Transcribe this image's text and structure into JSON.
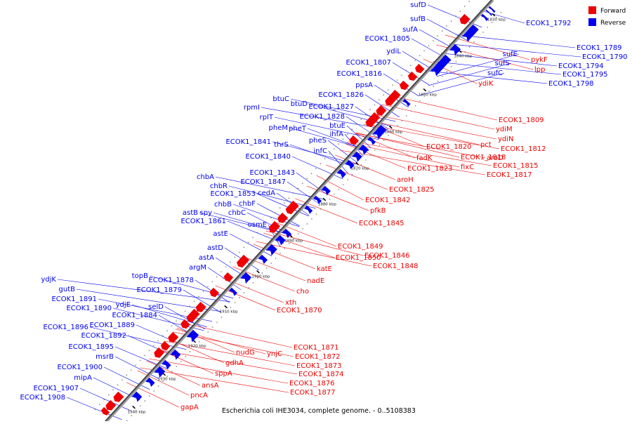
{
  "legend": {
    "forward_label": "Forward",
    "reverse_label": "Reverse",
    "forward_color": "#ee0000",
    "reverse_color": "#0000ee"
  },
  "caption": "Escherichia coli IHE3034, complete genome. - 0..5108383",
  "kbp_ticks": [
    "1830 kbp",
    "1840 kbp",
    "1850 kbp",
    "1860 kbp",
    "1870 kbp",
    "1880 kbp",
    "1890 kbp",
    "1900 kbp",
    "1910 kbp",
    "1920 kbp",
    "1930 kbp",
    "1940 kbp"
  ],
  "reverse_labels": [
    "sufD",
    "sufB",
    "sufA",
    "ECOK1_1805",
    "ydiL",
    "ECOK1_1807",
    "ECOK1_1816",
    "ppsA",
    "ECOK1_1826",
    "btuC",
    "btuD",
    "rpmI",
    "ECOK1_1827",
    "rplT",
    "ECOK1_1828",
    "pheM",
    "pheT",
    "btuE",
    "ihfA",
    "pheS",
    "thrS",
    "ECOK1_1841",
    "infC",
    "ECOK1_1840",
    "ECOK1_1843",
    "ECOK1_1847",
    "chbA",
    "chbR",
    "cedA",
    "ECOK1_1853",
    "chbB",
    "chbF",
    "chbC",
    "astB",
    "spy",
    "osmE",
    "ECOK1_1861",
    "astE",
    "astD",
    "astA",
    "argM",
    "topB",
    "ECOK1_1878",
    "ECOK1_1879",
    "ydjK",
    "gutB",
    "ECOK1_1891",
    "ECOK1_1890",
    "ydjE",
    "selD",
    "ECOK1_1884",
    "ECOK1_1889",
    "ECOK1_1896",
    "ECOK1_1892",
    "ECOK1_1895",
    "msrB",
    "ECOK1_1900",
    "mipA",
    "ECOK1_1907",
    "ECOK1_1908",
    "ECOK1_1792",
    "ECOK1_1789",
    "ECOK1_1790",
    "ECOK1_1794",
    "sufE",
    "sufS",
    "ECOK1_1795",
    "sufC",
    "ECOK1_1798"
  ],
  "forward_labels": [
    "pykF",
    "lpp",
    "ydiK",
    "ECOK1_1809",
    "ydiM",
    "ydiN",
    "pct",
    "ECOK1_1812",
    "ECOK1_1820",
    "aroD",
    "fadK",
    "ECOK1_1818",
    "ECOK1_1815",
    "fixC",
    "ECOK1_1823",
    "ECOK1_1817",
    "aroH",
    "ECOK1_1825",
    "ECOK1_1842",
    "pfkB",
    "ECOK1_1845",
    "ECOK1_1849",
    "ECOK1_1846",
    "ECOK1_1850",
    "ECOK1_1848",
    "katE",
    "nadE",
    "cho",
    "xth",
    "ECOK1_1870",
    "ECOK1_1871",
    "nudG",
    "ynjC",
    "ECOK1_1872",
    "gdhA",
    "ECOK1_1873",
    "sppA",
    "ECOK1_1874",
    "ECOK1_1876",
    "ansA",
    "ECOK1_1877",
    "pncA",
    "gapA"
  ]
}
